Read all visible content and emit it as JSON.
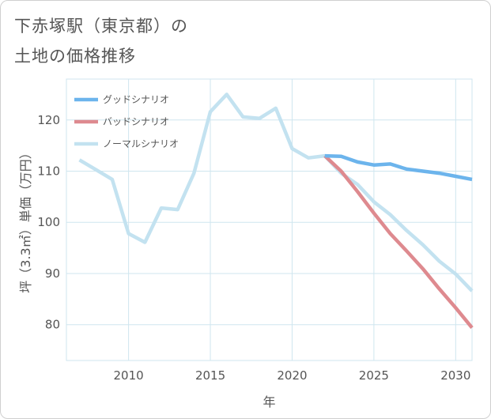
{
  "title": {
    "line1": "下赤塚駅（東京都）の",
    "line2": "土地の価格推移"
  },
  "colors": {
    "good": "#6cb4ec",
    "bad": "#de8a8f",
    "normal": "#c3e2f0",
    "grid": "#cfe6ef",
    "axis": "#555555"
  },
  "chart_data": {
    "type": "line",
    "title": "下赤塚駅（東京都）の土地の価格推移",
    "xlabel": "年",
    "ylabel": "坪（3.3㎡）単価（万円）",
    "xlim": [
      2006.2,
      2031
    ],
    "ylim": [
      73,
      128
    ],
    "xticks": [
      2010,
      2015,
      2020,
      2025,
      2030
    ],
    "yticks": [
      80,
      90,
      100,
      110,
      120
    ],
    "legend_position": "top-left",
    "series": [
      {
        "name": "グッドシナリオ",
        "color_key": "good",
        "x": [
          2022,
          2023,
          2024,
          2025,
          2026,
          2027,
          2028,
          2029,
          2030,
          2031
        ],
        "y": [
          113.0,
          112.9,
          111.8,
          111.2,
          111.4,
          110.4,
          110.0,
          109.6,
          109.0,
          108.4
        ]
      },
      {
        "name": "バッドシナリオ",
        "color_key": "bad",
        "x": [
          2022,
          2023,
          2024,
          2025,
          2026,
          2027,
          2028,
          2029,
          2030,
          2031
        ],
        "y": [
          113.0,
          110.0,
          106.0,
          101.8,
          97.8,
          94.4,
          90.9,
          87.0,
          83.3,
          79.4
        ]
      },
      {
        "name": "ノーマルシナリオ",
        "color_key": "normal",
        "x": [
          2007,
          2008,
          2009,
          2010,
          2011,
          2012,
          2013,
          2014,
          2015,
          2016,
          2017,
          2018,
          2019,
          2020,
          2021,
          2022,
          2023,
          2024,
          2025,
          2026,
          2027,
          2028,
          2029,
          2030,
          2031
        ],
        "y": [
          112.2,
          110.3,
          108.4,
          97.8,
          96.1,
          102.8,
          102.5,
          109.6,
          121.6,
          125.0,
          120.6,
          120.3,
          122.3,
          114.4,
          112.6,
          113.0,
          109.6,
          107.4,
          104.0,
          101.5,
          98.4,
          95.6,
          92.4,
          89.9,
          86.6
        ]
      }
    ]
  }
}
